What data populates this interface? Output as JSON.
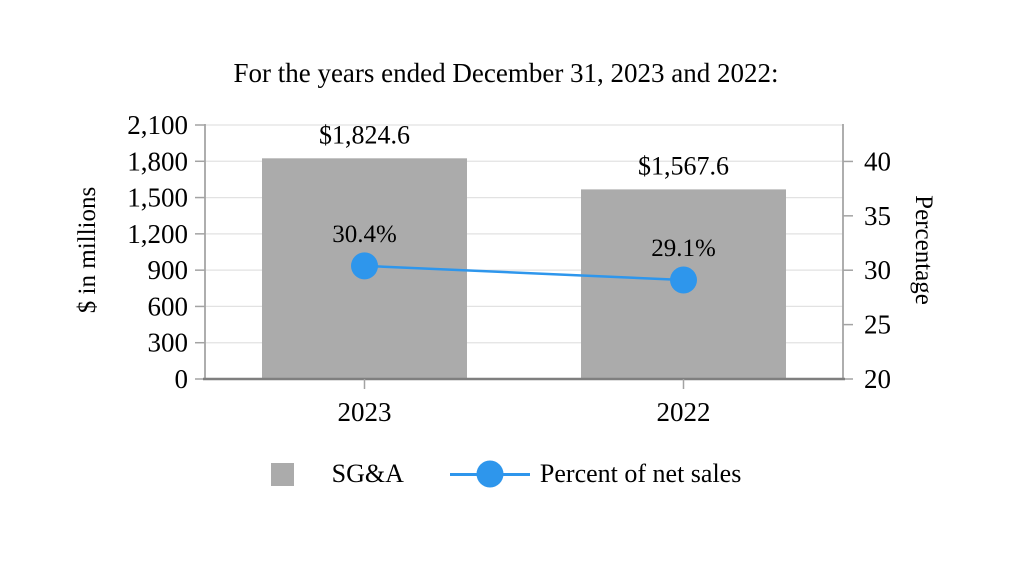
{
  "chart_data": {
    "type": "bar",
    "combo": "bar+line, dual axis",
    "title": "For the years ended December 31, 2023 and 2022:",
    "categories": [
      "2023",
      "2022"
    ],
    "series": [
      {
        "name": "SG&A",
        "type": "bar",
        "axis": "left",
        "values": [
          1824.6,
          1567.6
        ],
        "labels": [
          "$1,824.6",
          "$1,567.6"
        ],
        "color": "#ABABAB"
      },
      {
        "name": "Percent of net sales",
        "type": "line",
        "axis": "right",
        "values": [
          30.4,
          29.1
        ],
        "labels": [
          "30.4%",
          "29.1%"
        ],
        "color": "#2E96EC"
      }
    ],
    "left_axis": {
      "label": "$ in millions",
      "min": 0,
      "max": 2100,
      "step": 300,
      "tick_labels": [
        "0",
        "300",
        "600",
        "900",
        "1,200",
        "1,500",
        "1,800",
        "2,100"
      ]
    },
    "right_axis": {
      "label": "Percentage",
      "min": 20,
      "max_visible": 40,
      "step": 5,
      "axis_top": 43.35,
      "tick_labels": [
        "20",
        "25",
        "30",
        "35",
        "40"
      ]
    },
    "grid": "horizontal gridlines on, from left axis steps",
    "legend_position": "bottom",
    "colors": {
      "gridline": "#E2E2E2",
      "axis_side": "#A3A3A3",
      "axis_bottom": "#7F7F7F",
      "text": "#000000"
    }
  }
}
